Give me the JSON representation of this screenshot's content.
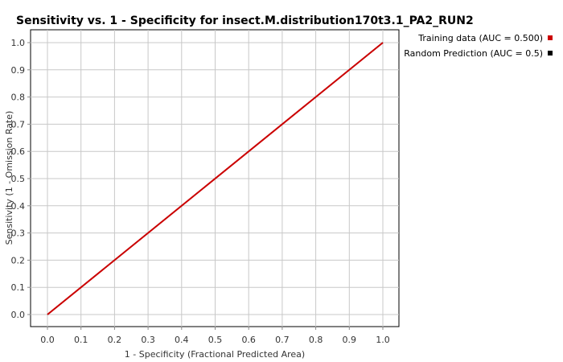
{
  "chart_data": {
    "type": "line",
    "title": "Sensitivity vs. 1 - Specificity for insect.M.distribution170t3.1_PA2_RUN2",
    "xlabel": "1 - Specificity  (Fractional Predicted Area)",
    "ylabel": "Sensitivity  (1 - Omission Rate)",
    "xlim": [
      0.0,
      1.0
    ],
    "ylim": [
      0.0,
      1.0
    ],
    "x_ticks": [
      0.0,
      0.1,
      0.2,
      0.3,
      0.4,
      0.5,
      0.6,
      0.7,
      0.8,
      0.9,
      1.0
    ],
    "y_ticks": [
      0.0,
      0.1,
      0.2,
      0.3,
      0.4,
      0.5,
      0.6,
      0.7,
      0.8,
      0.9,
      1.0
    ],
    "x_tick_labels": [
      "0.0",
      "0.1",
      "0.2",
      "0.3",
      "0.4",
      "0.5",
      "0.6",
      "0.7",
      "0.8",
      "0.9",
      "1.0"
    ],
    "y_tick_labels": [
      "0.0",
      "0.1",
      "0.2",
      "0.3",
      "0.4",
      "0.5",
      "0.6",
      "0.7",
      "0.8",
      "0.9",
      "1.0"
    ],
    "grid": true,
    "legend_position": "top-right outside",
    "series": [
      {
        "name": "Training data (AUC = 0.500)",
        "color": "#cc0000",
        "x": [
          0.0,
          1.0
        ],
        "y": [
          0.0,
          1.0
        ]
      },
      {
        "name": "Random Prediction (AUC = 0.5)",
        "color": "#000000",
        "x": [
          0.0,
          1.0
        ],
        "y": [
          0.0,
          1.0
        ]
      }
    ]
  }
}
